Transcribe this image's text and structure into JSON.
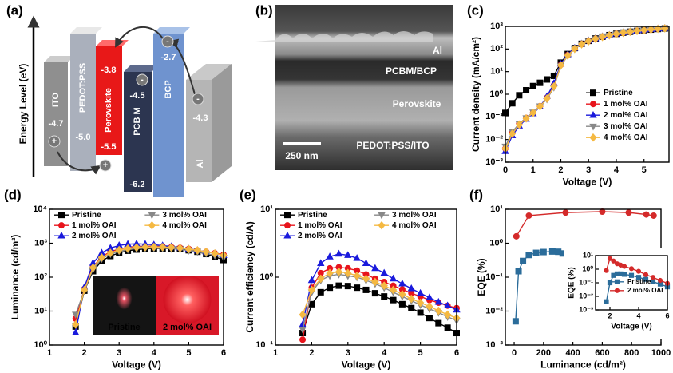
{
  "diagram": {
    "panel_label": "(a)",
    "axis_label": "Energy Level (eV)",
    "layers": [
      {
        "name": "ITO",
        "levels": [
          "-4.7"
        ]
      },
      {
        "name": "PEDOT:PSS",
        "levels": [
          "-5.0"
        ]
      },
      {
        "name": "Perovskite",
        "levels": [
          "-3.8",
          "-5.5"
        ]
      },
      {
        "name": "PCB M",
        "levels": [
          "-4.5",
          "-6.2"
        ]
      },
      {
        "name": "BCP",
        "levels": [
          "-2.7"
        ]
      },
      {
        "name": "Al",
        "levels": [
          "-4.3"
        ]
      }
    ],
    "charges": {
      "electron": "-",
      "hole": "+"
    }
  },
  "micrograph": {
    "panel_label": "(b)",
    "layers": [
      "Al",
      "PCBM/BCP",
      "Perovskite",
      "PEDOT:PSS/ITO"
    ],
    "scale_bar": "250 nm"
  },
  "chart_data": [
    {
      "type": "line",
      "panel_label": "(c)",
      "x_label": "Voltage (V)",
      "y_label": "Current density (mA/cm²)",
      "log_y": true,
      "xlim": [
        0,
        5.9
      ],
      "xticks": [
        0,
        1,
        2,
        3,
        4,
        5
      ],
      "ylim": [
        0.001,
        1000
      ],
      "yticks": [
        {
          "value": 0.001,
          "label": "10⁻³"
        },
        {
          "value": 0.01,
          "label": "10⁻²"
        },
        {
          "value": 0.1,
          "label": "10⁻¹"
        },
        {
          "value": 1,
          "label": "10⁰"
        },
        {
          "value": 10,
          "label": "10¹"
        },
        {
          "value": 100,
          "label": "10²"
        },
        {
          "value": 1000,
          "label": "10³"
        }
      ],
      "legend": "lower right",
      "legend_columns": 1,
      "x": [
        0,
        0.25,
        0.5,
        0.75,
        1,
        1.25,
        1.5,
        1.75,
        2,
        2.25,
        2.5,
        2.75,
        3,
        3.25,
        3.5,
        3.75,
        4,
        4.25,
        4.5,
        4.75,
        5,
        5.25,
        5.5,
        5.75
      ],
      "series": [
        {
          "name": "Pristine",
          "color": "#000000",
          "marker": "square",
          "values": [
            0.15,
            0.4,
            0.9,
            1.5,
            2.3,
            3.2,
            4.5,
            6.5,
            25,
            60,
            110,
            170,
            230,
            290,
            350,
            410,
            470,
            530,
            580,
            630,
            680,
            720,
            770,
            810
          ]
        },
        {
          "name": "1 mol% OAI",
          "color": "#e8141c",
          "marker": "circle",
          "values": [
            0.004,
            0.02,
            0.05,
            0.09,
            0.15,
            0.3,
            0.7,
            2.5,
            20,
            55,
            105,
            165,
            225,
            285,
            345,
            405,
            465,
            525,
            580,
            630,
            680,
            730,
            780,
            820
          ]
        },
        {
          "name": "2 mol% OAI",
          "color": "#1a1adc",
          "marker": "triangle-up",
          "values": [
            0.003,
            0.015,
            0.04,
            0.08,
            0.14,
            0.28,
            0.8,
            3,
            22,
            58,
            110,
            170,
            235,
            295,
            355,
            415,
            475,
            535,
            590,
            640,
            690,
            740,
            790,
            830
          ]
        },
        {
          "name": "3 mol% OAI",
          "color": "#888888",
          "marker": "triangle-down",
          "values": [
            0.005,
            0.022,
            0.05,
            0.09,
            0.16,
            0.3,
            0.6,
            2,
            18,
            50,
            100,
            160,
            220,
            280,
            340,
            400,
            460,
            520,
            575,
            625,
            675,
            725,
            775,
            815
          ]
        },
        {
          "name": "4 mol% OAI",
          "color": "#f5b942",
          "marker": "diamond",
          "values": [
            0.004,
            0.018,
            0.045,
            0.085,
            0.15,
            0.29,
            0.65,
            2.2,
            19,
            52,
            102,
            162,
            222,
            282,
            342,
            402,
            462,
            522,
            578,
            628,
            678,
            728,
            778,
            818
          ]
        }
      ]
    },
    {
      "type": "line",
      "panel_label": "(d)",
      "x_label": "Voltage (V)",
      "y_label": "Luminance (cd/m²)",
      "log_y": true,
      "xlim": [
        1,
        6
      ],
      "xticks": [
        1,
        2,
        3,
        4,
        5,
        6
      ],
      "ylim": [
        1,
        10000
      ],
      "yticks": [
        {
          "value": 1,
          "label": "10⁰"
        },
        {
          "value": 10,
          "label": "10¹"
        },
        {
          "value": 100,
          "label": "10²"
        },
        {
          "value": 1000,
          "label": "10³"
        },
        {
          "value": 10000,
          "label": "10⁴"
        }
      ],
      "legend": "upper left",
      "legend_columns": 2,
      "inset_labels": [
        "Pristine",
        "2 mol% OAI"
      ],
      "x": [
        1.75,
        2,
        2.25,
        2.5,
        2.75,
        3,
        3.25,
        3.5,
        3.75,
        4,
        4.25,
        4.5,
        4.75,
        5,
        5.25,
        5.5,
        5.75,
        6
      ],
      "series": [
        {
          "name": "Pristine",
          "color": "#000000",
          "marker": "square",
          "values": [
            3.5,
            40,
            150,
            300,
            420,
            520,
            600,
            650,
            680,
            700,
            700,
            690,
            670,
            620,
            560,
            480,
            400,
            320
          ]
        },
        {
          "name": "1 mol% OAI",
          "color": "#e8141c",
          "marker": "circle",
          "values": [
            6,
            45,
            200,
            400,
            560,
            680,
            760,
            800,
            820,
            820,
            800,
            770,
            730,
            680,
            620,
            560,
            510,
            460
          ]
        },
        {
          "name": "2 mol% OAI",
          "color": "#1a1adc",
          "marker": "triangle-up",
          "values": [
            2.3,
            50,
            260,
            520,
            720,
            860,
            940,
            960,
            940,
            900,
            850,
            800,
            740,
            680,
            620,
            560,
            500,
            440
          ]
        },
        {
          "name": "3 mol% OAI",
          "color": "#888888",
          "marker": "triangle-down",
          "values": [
            8,
            40,
            170,
            350,
            480,
            580,
            650,
            690,
            710,
            720,
            710,
            690,
            660,
            610,
            560,
            500,
            440,
            380
          ]
        },
        {
          "name": "4 mol% OAI",
          "color": "#f5b942",
          "marker": "diamond",
          "values": [
            4,
            42,
            190,
            380,
            520,
            630,
            700,
            750,
            770,
            780,
            770,
            750,
            720,
            670,
            620,
            560,
            500,
            440
          ]
        }
      ]
    },
    {
      "type": "line",
      "panel_label": "(e)",
      "x_label": "Voltage (V)",
      "y_label": "Current efficiency (cd/A)",
      "log_y": true,
      "xlim": [
        1,
        6
      ],
      "xticks": [
        1,
        2,
        3,
        4,
        5,
        6
      ],
      "ylim": [
        0.1,
        10
      ],
      "yticks": [
        {
          "value": 0.1,
          "label": "10⁻¹"
        },
        {
          "value": 1,
          "label": "10⁰"
        },
        {
          "value": 10,
          "label": "10¹"
        }
      ],
      "legend": "upper left",
      "legend_columns": 2,
      "x": [
        1.75,
        2,
        2.25,
        2.5,
        2.75,
        3,
        3.25,
        3.5,
        3.75,
        4,
        4.25,
        4.5,
        4.75,
        5,
        5.25,
        5.5,
        5.75,
        6
      ],
      "series": [
        {
          "name": "Pristine",
          "color": "#000000",
          "marker": "square",
          "values": [
            0.15,
            0.4,
            0.6,
            0.7,
            0.75,
            0.74,
            0.7,
            0.65,
            0.58,
            0.52,
            0.46,
            0.4,
            0.35,
            0.3,
            0.25,
            0.21,
            0.18,
            0.15
          ]
        },
        {
          "name": "1 mol% OAI",
          "color": "#e8141c",
          "marker": "circle",
          "values": [
            0.12,
            0.7,
            1.15,
            1.35,
            1.4,
            1.35,
            1.25,
            1.1,
            0.95,
            0.85,
            0.75,
            0.66,
            0.58,
            0.52,
            0.46,
            0.42,
            0.38,
            0.35
          ]
        },
        {
          "name": "2 mol% OAI",
          "color": "#1a1adc",
          "marker": "triangle-up",
          "values": [
            0.2,
            0.9,
            1.6,
            2,
            2.2,
            2.1,
            1.9,
            1.6,
            1.35,
            1.15,
            0.95,
            0.8,
            0.68,
            0.58,
            0.5,
            0.43,
            0.38,
            0.33
          ]
        },
        {
          "name": "3 mol% OAI",
          "color": "#888888",
          "marker": "triangle-down",
          "values": [
            0.17,
            0.6,
            0.9,
            1.05,
            1.1,
            1.05,
            1,
            0.9,
            0.8,
            0.7,
            0.6,
            0.52,
            0.45,
            0.39,
            0.34,
            0.3,
            0.26,
            0.23
          ]
        },
        {
          "name": "4 mol% OAI",
          "color": "#f5b942",
          "marker": "diamond",
          "values": [
            0.28,
            0.65,
            0.95,
            1.15,
            1.2,
            1.15,
            1.05,
            0.95,
            0.85,
            0.75,
            0.65,
            0.56,
            0.48,
            0.42,
            0.37,
            0.32,
            0.28,
            0.25
          ]
        }
      ]
    },
    {
      "type": "line",
      "panel_label": "(f)",
      "x_label": "Luminance (cd/m²)",
      "y_label": "EQE (%)",
      "log_y": true,
      "xlim": [
        -60,
        1000
      ],
      "xticks": [
        0,
        200,
        400,
        600,
        800,
        1000
      ],
      "ylim": [
        0.001,
        10
      ],
      "yticks": [
        {
          "value": 0.001,
          "label": "10⁻³"
        },
        {
          "value": 0.01,
          "label": "10⁻²"
        },
        {
          "value": 0.1,
          "label": "10⁻¹"
        },
        {
          "value": 1,
          "label": "10⁰"
        },
        {
          "value": 10,
          "label": "10¹"
        }
      ],
      "series": [
        {
          "color": "#2b6c9a",
          "marker": "square",
          "x": [
            10,
            30,
            60,
            100,
            150,
            200,
            260,
            300,
            330
          ],
          "values": [
            0.005,
            0.15,
            0.3,
            0.45,
            0.52,
            0.55,
            0.57,
            0.56,
            0.5
          ]
        },
        {
          "color": "#d42a2a",
          "marker": "circle",
          "x": [
            15,
            100,
            350,
            600,
            780,
            900,
            950
          ],
          "values": [
            1.6,
            6.5,
            8,
            8.5,
            8,
            7,
            6.5
          ]
        }
      ]
    },
    {
      "type": "line",
      "x_label": "Voltage (V)",
      "y_label": "EQE (%)",
      "log_y": true,
      "xlim": [
        1,
        6
      ],
      "xticks": [
        2,
        4,
        6
      ],
      "ylim": [
        0.001,
        10
      ],
      "yticks": [
        {
          "value": 0.001,
          "label": "10⁻³"
        },
        {
          "value": 0.01,
          "label": "10⁻²"
        },
        {
          "value": 0.1,
          "label": "10⁻¹"
        },
        {
          "value": 1,
          "label": "10⁰"
        },
        {
          "value": 10,
          "label": "10¹"
        }
      ],
      "legend": "lower right",
      "legend_columns": 1,
      "x": [
        1.75,
        2,
        2.25,
        2.5,
        2.75,
        3,
        3.5,
        4,
        4.5,
        5,
        5.5,
        6
      ],
      "series": [
        {
          "name": "Pristine",
          "color": "#2b6c9a",
          "marker": "square",
          "values": [
            0.004,
            0.1,
            0.35,
            0.45,
            0.45,
            0.42,
            0.35,
            0.25,
            0.18,
            0.12,
            0.08,
            0.05
          ]
        },
        {
          "name": "2 mol% OAI",
          "color": "#d42a2a",
          "marker": "circle",
          "values": [
            0.8,
            6,
            4,
            2.5,
            2,
            1.6,
            1.1,
            0.7,
            0.4,
            0.25,
            0.15,
            0.09
          ]
        }
      ]
    }
  ]
}
